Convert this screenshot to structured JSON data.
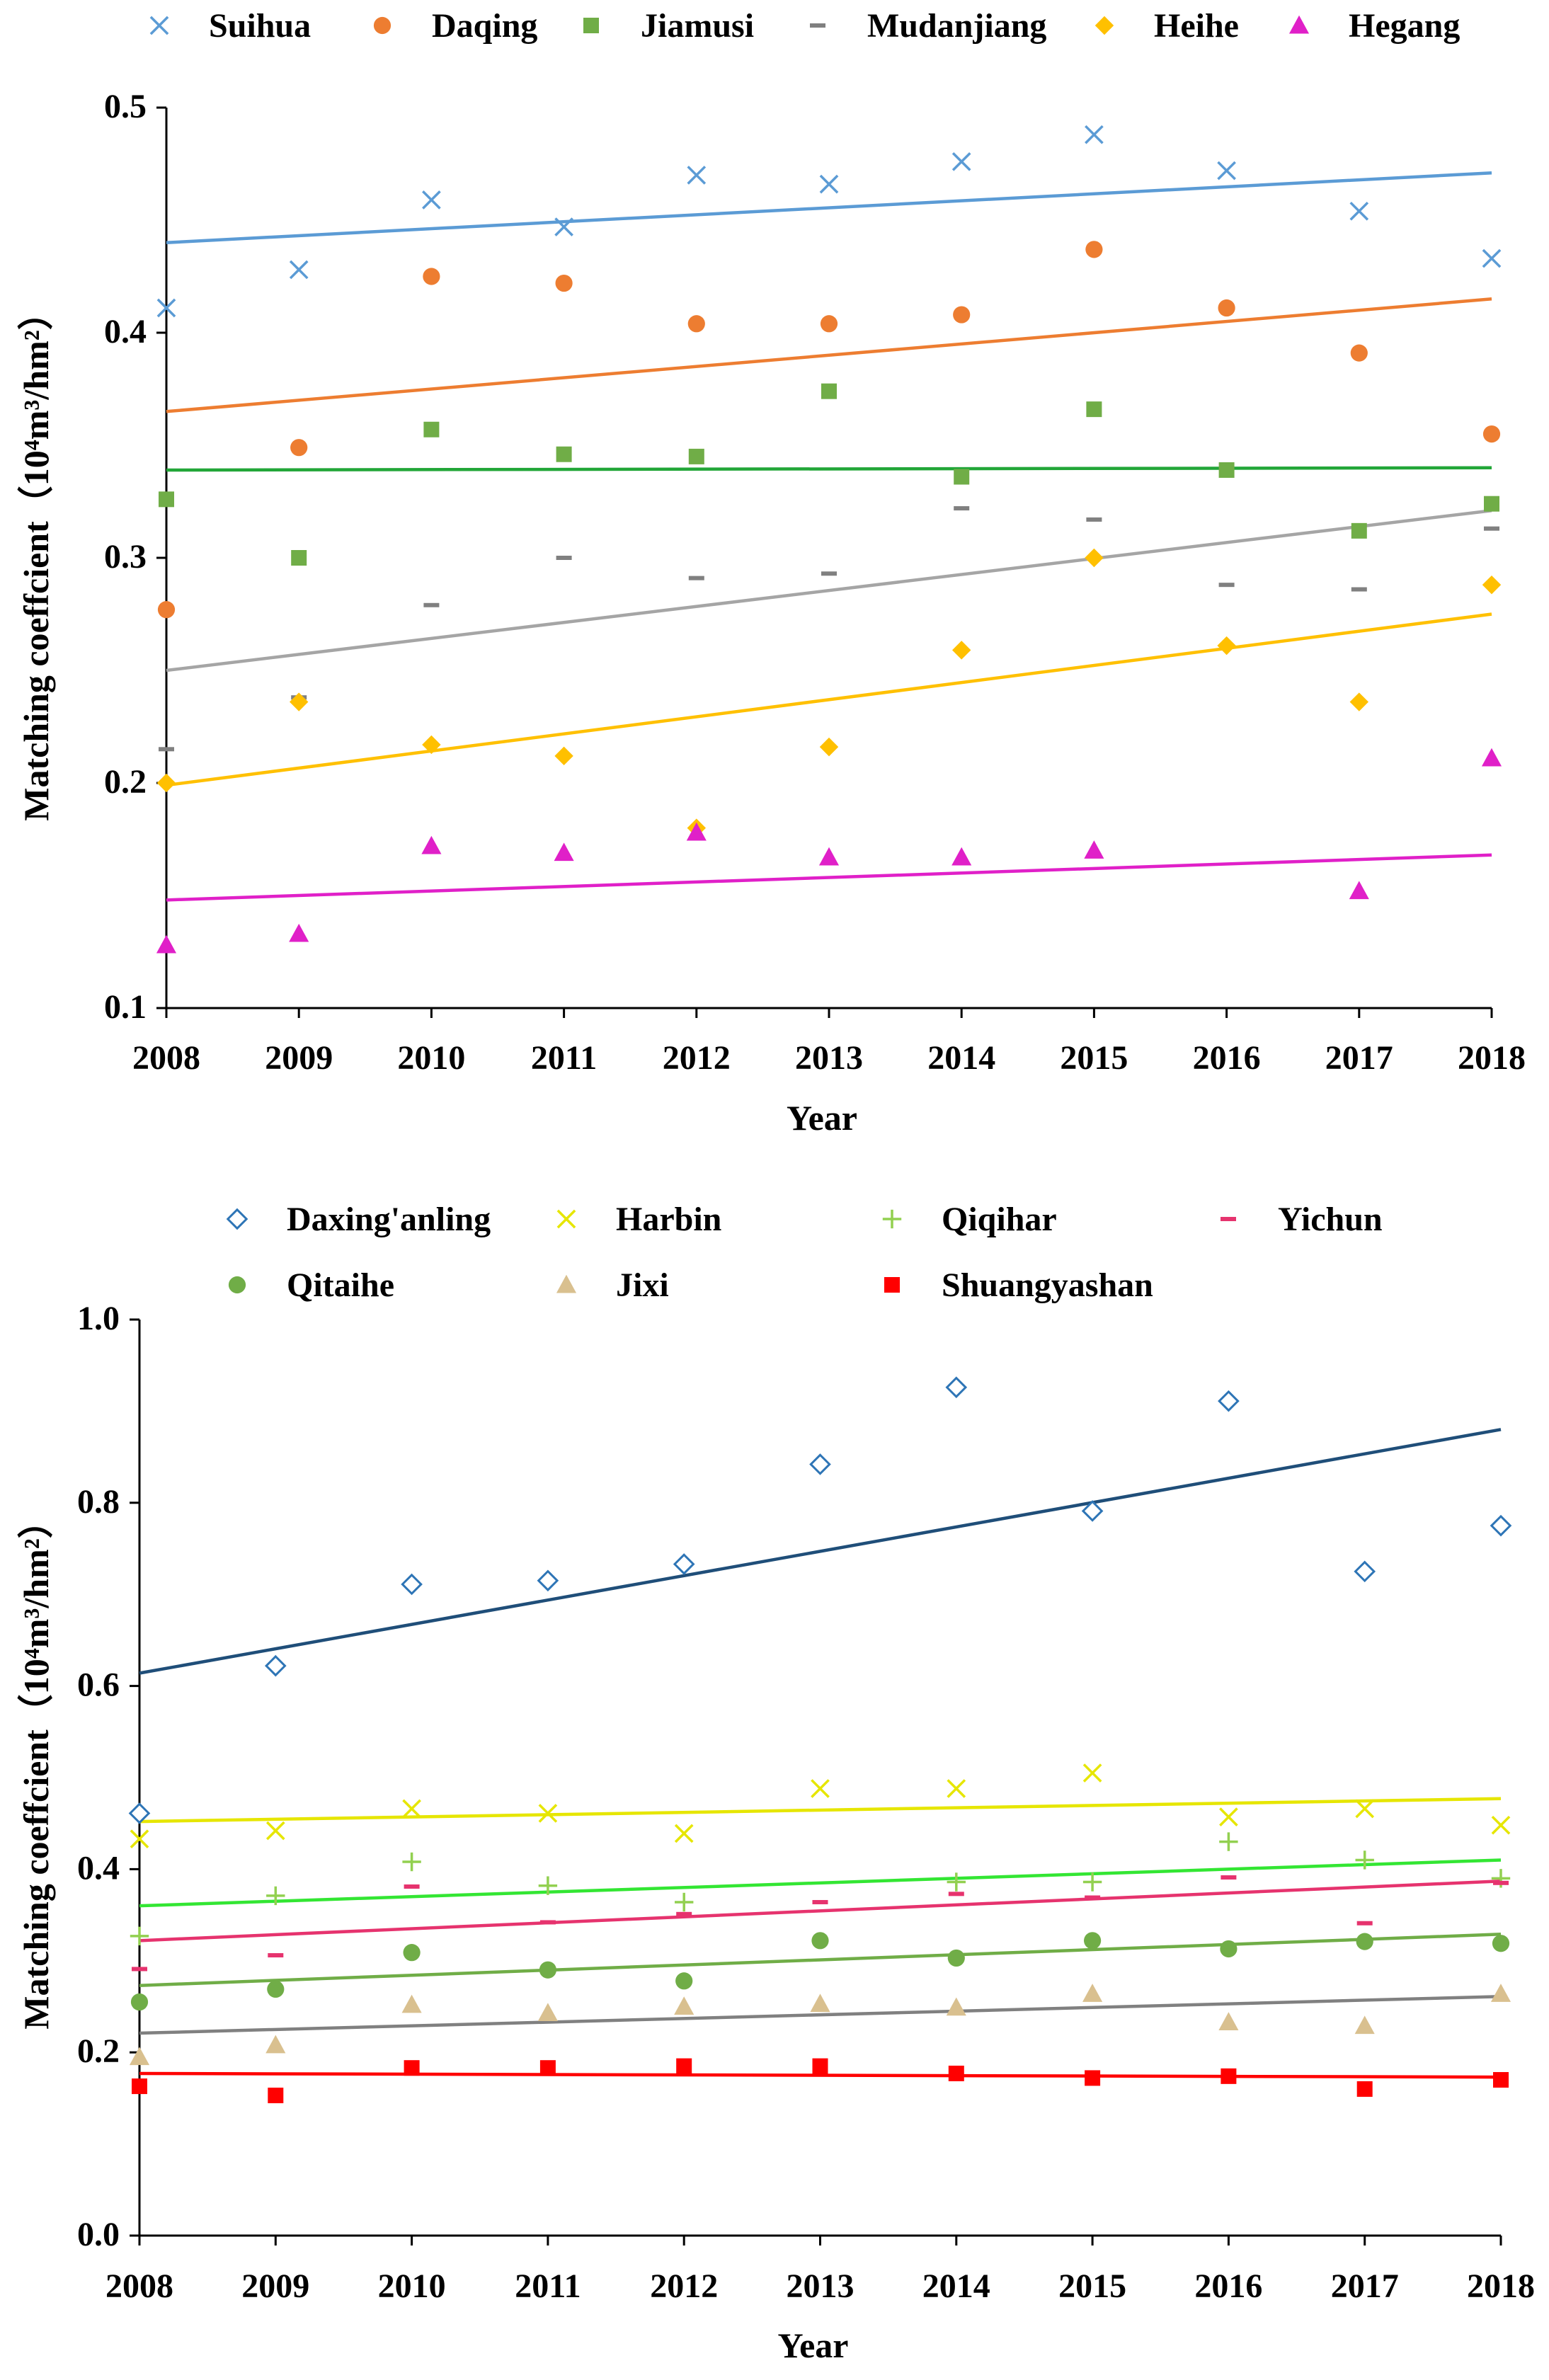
{
  "chart_data": [
    {
      "type": "scatter",
      "title": "",
      "xlabel": "Year",
      "ylabel": "Matching coeffcient（10⁴m³/hm²）",
      "categories": [
        "2008",
        "2009",
        "2010",
        "2011",
        "2012",
        "2013",
        "2014",
        "2015",
        "2016",
        "2017",
        "2018"
      ],
      "ylim": [
        0.1,
        0.5
      ],
      "yticks": [
        "0.1",
        "0.2",
        "0.3",
        "0.4",
        "0.5"
      ],
      "legend_position": "top",
      "trendlines": true,
      "series": [
        {
          "name": "Suihua",
          "marker": "x",
          "color": "#5b9bd5",
          "trend_color": "#5b9bd5",
          "values": [
            0.411,
            0.428,
            0.459,
            0.447,
            0.47,
            0.466,
            0.476,
            0.488,
            0.472,
            0.454,
            0.433
          ],
          "trend": [
            0.44,
            0.471
          ]
        },
        {
          "name": "Daqing",
          "marker": "circle",
          "color": "#ed7d31",
          "trend_color": "#ed7d31",
          "values": [
            0.277,
            0.349,
            0.425,
            0.422,
            0.404,
            0.404,
            0.408,
            0.437,
            0.411,
            0.391,
            0.355
          ],
          "trend": [
            0.365,
            0.415
          ]
        },
        {
          "name": "Jiamusi",
          "marker": "square",
          "color": "#70ad47",
          "trend_color": "#22a638",
          "values": [
            0.326,
            0.3,
            0.357,
            0.346,
            0.345,
            0.374,
            0.336,
            0.366,
            0.339,
            0.312,
            0.324
          ],
          "trend": [
            0.339,
            0.34
          ]
        },
        {
          "name": "Mudanjiang",
          "marker": "dash",
          "color": "#808080",
          "trend_color": "#a5a5a5",
          "values": [
            0.215,
            0.238,
            0.279,
            0.3,
            0.291,
            0.293,
            0.322,
            0.317,
            0.288,
            0.286,
            0.313
          ],
          "trend": [
            0.25,
            0.321
          ]
        },
        {
          "name": "Heihe",
          "marker": "diamond",
          "color": "#ffc000",
          "trend_color": "#ffc000",
          "values": [
            0.2,
            0.236,
            0.217,
            0.212,
            0.18,
            0.216,
            0.259,
            0.3,
            0.261,
            0.236,
            0.288
          ],
          "trend": [
            0.199,
            0.275
          ]
        },
        {
          "name": "Hegang",
          "marker": "triangle",
          "color": "#e020c8",
          "trend_color": "#e020c8",
          "values": [
            0.128,
            0.133,
            0.172,
            0.169,
            0.178,
            0.167,
            0.167,
            0.17,
            null,
            0.152,
            0.211
          ],
          "trend": [
            0.148,
            0.168
          ]
        }
      ]
    },
    {
      "type": "scatter",
      "title": "",
      "xlabel": "Year",
      "ylabel": "Matching coeffcient（10⁴m³/hm²）",
      "categories": [
        "2008",
        "2009",
        "2010",
        "2011",
        "2012",
        "2013",
        "2014",
        "2015",
        "2016",
        "2017",
        "2018"
      ],
      "ylim": [
        0.0,
        1.0
      ],
      "yticks": [
        "0.0",
        "0.2",
        "0.4",
        "0.6",
        "0.8",
        "1.0"
      ],
      "legend_position": "top",
      "trendlines": true,
      "series": [
        {
          "name": "Daxing'anling",
          "marker": "diamond-open",
          "color": "#2e75b6",
          "trend_color": "#1f4e79",
          "values": [
            0.461,
            0.622,
            0.711,
            0.715,
            0.733,
            0.842,
            0.926,
            0.791,
            0.911,
            0.725,
            0.775
          ],
          "trend": [
            0.614,
            0.88
          ]
        },
        {
          "name": "Harbin",
          "marker": "x",
          "color": "#e6e600",
          "trend_color": "#e6e600",
          "values": [
            0.433,
            0.442,
            0.466,
            0.461,
            0.439,
            0.488,
            0.488,
            0.505,
            0.457,
            0.466,
            0.448
          ],
          "trend": [
            0.452,
            0.477
          ]
        },
        {
          "name": "Qiqihar",
          "marker": "plus",
          "color": "#92d050",
          "trend_color": "#33e633",
          "values": [
            0.327,
            0.371,
            0.408,
            0.382,
            0.364,
            null,
            0.386,
            0.386,
            0.43,
            0.41,
            0.39
          ],
          "trend": [
            0.36,
            0.41
          ]
        },
        {
          "name": "Yichun",
          "marker": "dash",
          "color": "#e6336e",
          "trend_color": "#e6336e",
          "values": [
            0.291,
            0.306,
            0.381,
            0.342,
            0.351,
            0.364,
            0.373,
            0.369,
            0.391,
            0.341,
            0.385
          ],
          "trend": [
            0.322,
            0.387
          ]
        },
        {
          "name": "Qitaihe",
          "marker": "circle",
          "color": "#70ad47",
          "trend_color": "#70ad47",
          "values": [
            0.255,
            0.269,
            0.309,
            0.29,
            0.278,
            0.322,
            0.303,
            0.322,
            0.313,
            0.321,
            0.319
          ],
          "trend": [
            0.273,
            0.329
          ]
        },
        {
          "name": "Jixi",
          "marker": "triangle",
          "color": "#d9c08f",
          "trend_color": "#808080",
          "values": [
            0.195,
            0.208,
            0.252,
            0.243,
            0.25,
            0.253,
            0.249,
            0.264,
            0.233,
            0.229,
            0.264
          ],
          "trend": [
            0.221,
            0.261
          ]
        },
        {
          "name": "Shuangyashan",
          "marker": "square",
          "color": "#ff0000",
          "trend_color": "#ff0000",
          "values": [
            0.163,
            0.153,
            0.183,
            0.183,
            0.185,
            0.185,
            0.177,
            0.172,
            0.174,
            0.16,
            0.17
          ],
          "trend": [
            0.177,
            0.173
          ]
        }
      ]
    }
  ]
}
